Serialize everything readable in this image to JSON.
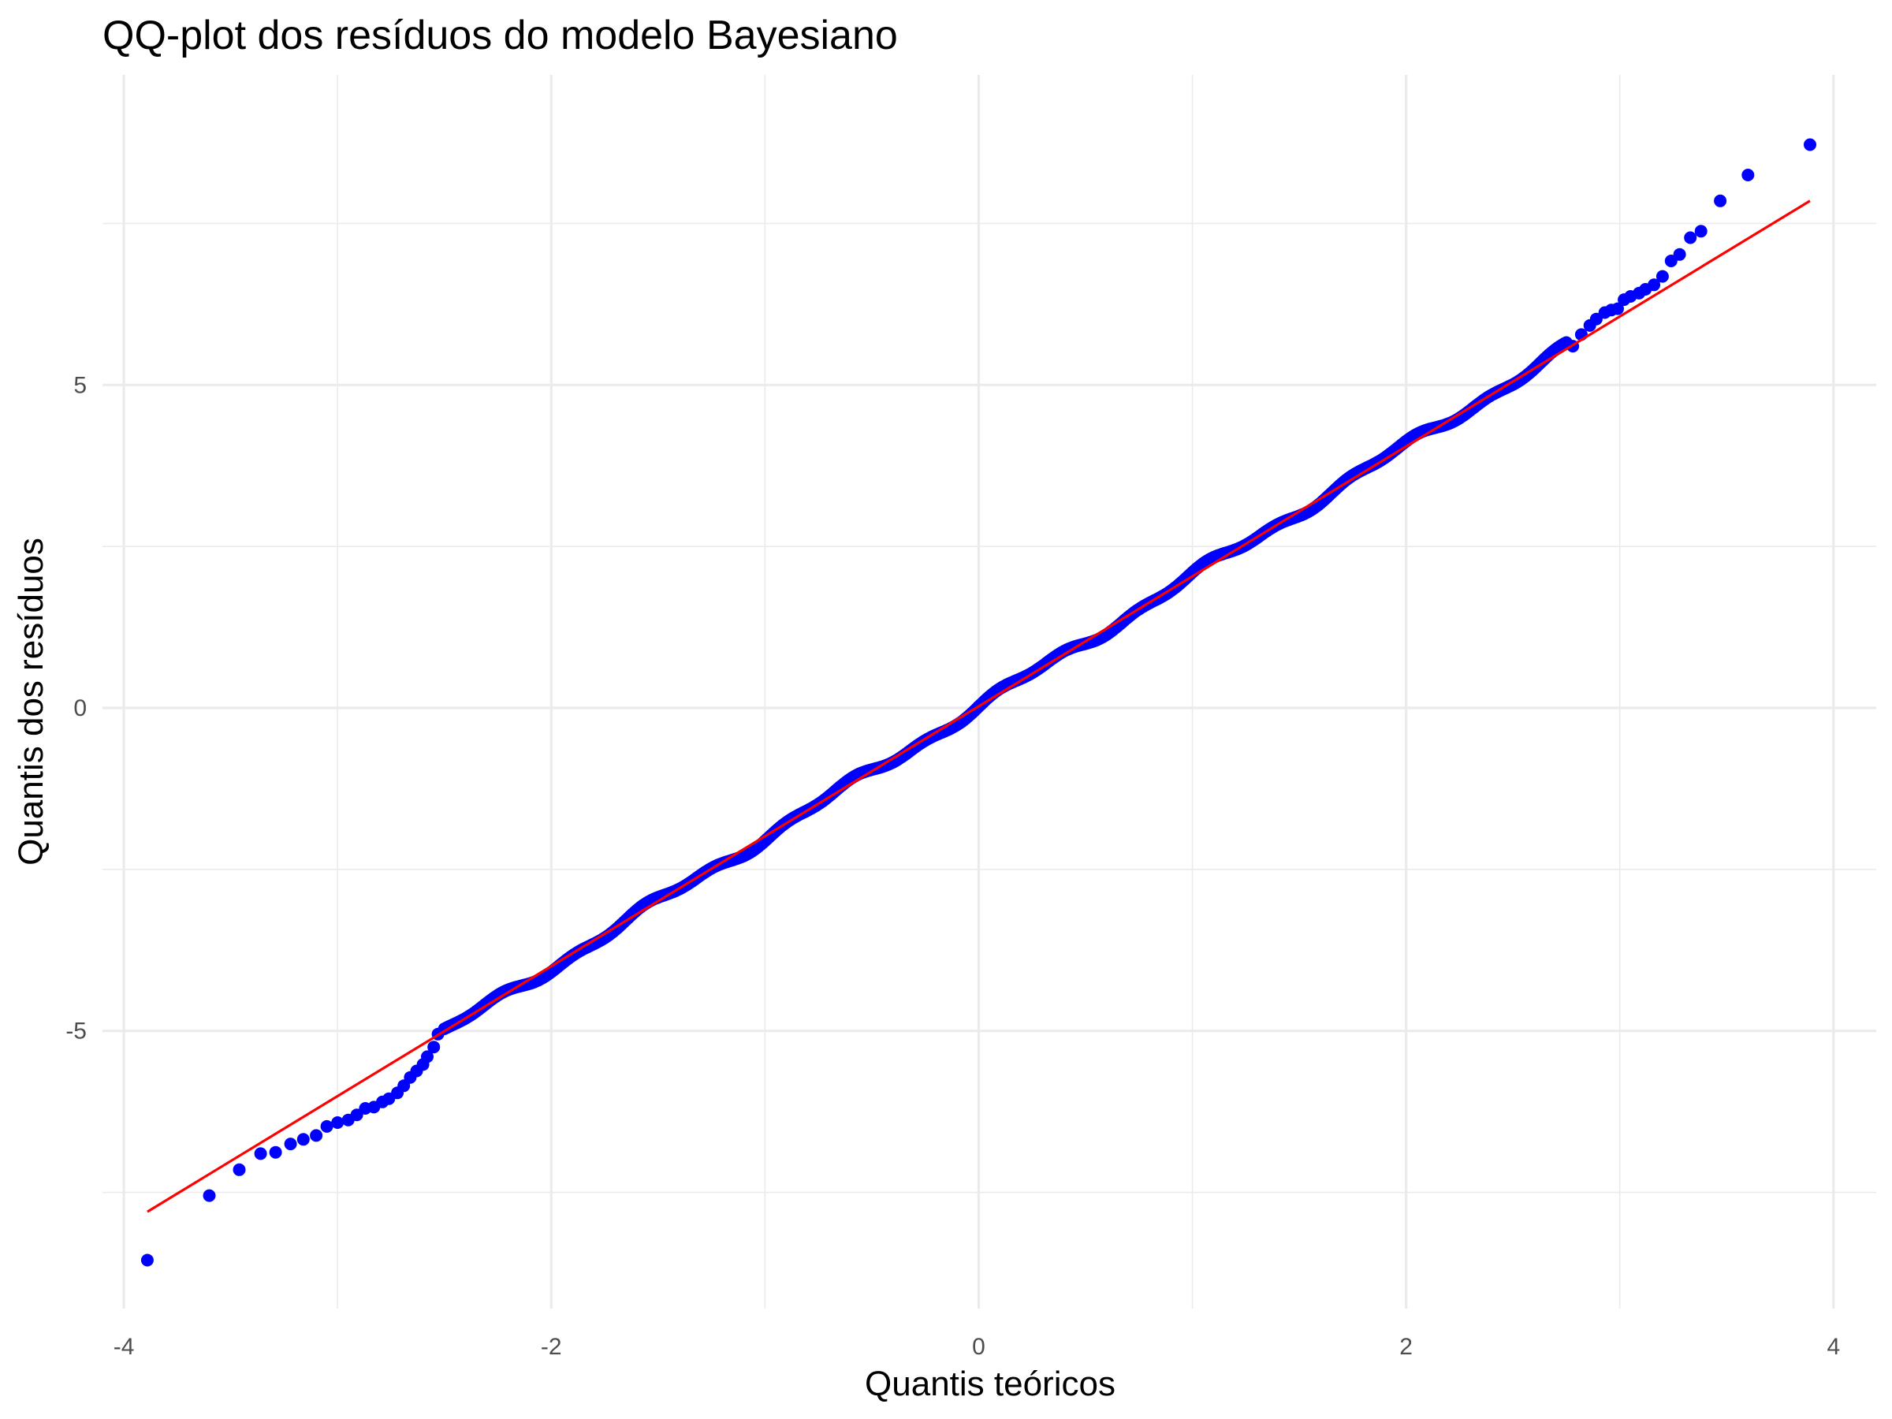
{
  "chart_data": {
    "type": "scatter",
    "title": "QQ-plot dos resíduos do modelo Bayesiano",
    "xlabel": "Quantis teóricos",
    "ylabel": "Quantis dos resíduos",
    "xlim": [
      -4.1,
      4.2
    ],
    "ylim": [
      -9.3,
      9.8
    ],
    "x_ticks": [
      -4,
      -2,
      0,
      2,
      4
    ],
    "x_tick_labels": [
      "-4",
      "-2",
      "0",
      "2",
      "4"
    ],
    "y_ticks": [
      -5,
      0,
      5
    ],
    "y_tick_labels": [
      "-5",
      "0",
      "5"
    ],
    "grid": true,
    "legend": "none",
    "colors": {
      "points": "#0000ff",
      "reference_line": "#ff0000",
      "grid": "#ebebeb",
      "background": "#ffffff"
    },
    "reference_line": {
      "x": [
        -3.89,
        3.89
      ],
      "y": [
        -7.8,
        7.85
      ]
    },
    "points_tail_low": {
      "x": [
        -3.89,
        -3.6,
        -3.46,
        -3.36,
        -3.29,
        -3.22,
        -3.16,
        -3.1,
        -3.05,
        -3.0,
        -2.95,
        -2.91,
        -2.87,
        -2.83,
        -2.79,
        -2.76,
        -2.72,
        -2.69,
        -2.66,
        -2.63,
        -2.6,
        -2.58,
        -2.55,
        -2.53
      ],
      "y": [
        -8.55,
        -7.55,
        -7.15,
        -6.9,
        -6.88,
        -6.75,
        -6.68,
        -6.62,
        -6.48,
        -6.42,
        -6.38,
        -6.3,
        -6.2,
        -6.18,
        -6.1,
        -6.05,
        -5.96,
        -5.85,
        -5.72,
        -5.62,
        -5.52,
        -5.4,
        -5.25,
        -5.05
      ]
    },
    "points_center": {
      "x_from": -2.5,
      "x_to": 2.75,
      "step": 0.01,
      "slope": 2.018,
      "intercept": 0.02,
      "note_wobble": true
    },
    "points_tail_high": {
      "x": [
        2.78,
        2.82,
        2.86,
        2.89,
        2.93,
        2.96,
        2.99,
        3.02,
        3.05,
        3.09,
        3.12,
        3.16,
        3.2,
        3.24,
        3.28,
        3.33,
        3.38,
        3.47,
        3.6,
        3.89
      ],
      "y": [
        5.6,
        5.78,
        5.92,
        6.02,
        6.12,
        6.16,
        6.18,
        6.32,
        6.37,
        6.42,
        6.48,
        6.55,
        6.68,
        6.92,
        7.02,
        7.28,
        7.38,
        7.85,
        8.25,
        8.72
      ]
    }
  }
}
